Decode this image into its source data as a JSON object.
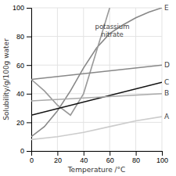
{
  "chart_data": {
    "type": "line",
    "xlabel": "Temperature /°C",
    "ylabel": "Solubility/g/100g water",
    "xlim": [
      0,
      100
    ],
    "ylim": [
      0,
      100
    ],
    "xticks": [
      0,
      20,
      40,
      60,
      80,
      100
    ],
    "yticks": [
      0,
      20,
      40,
      60,
      80,
      100
    ],
    "grid": true,
    "annotations": [
      {
        "text": "potassium\nnitrate",
        "x": 62,
        "y": 84
      }
    ],
    "series": [
      {
        "name": "E",
        "color": "#888888",
        "x": [
          0,
          10,
          20,
          30,
          40,
          50,
          60,
          70,
          80,
          90,
          100
        ],
        "values": [
          10,
          17,
          28,
          42,
          58,
          72,
          82,
          88,
          93,
          97,
          100
        ]
      },
      {
        "color": "#999999",
        "x": [
          0,
          10,
          20,
          30,
          40,
          50,
          60
        ],
        "values": [
          50,
          42,
          32,
          25,
          40,
          70,
          100
        ]
      },
      {
        "name": "D",
        "color": "#888888",
        "x": [
          0,
          100
        ],
        "values": [
          50,
          60
        ]
      },
      {
        "name": "C",
        "color": "#111111",
        "x": [
          0,
          100
        ],
        "values": [
          25,
          48
        ]
      },
      {
        "name": "B",
        "color": "#aaaaaa",
        "x": [
          0,
          100
        ],
        "values": [
          35,
          40
        ]
      },
      {
        "name": "A",
        "color": "#cccccc",
        "x": [
          0,
          20,
          40,
          60,
          80,
          100
        ],
        "values": [
          8,
          10,
          13,
          17,
          21,
          24
        ]
      }
    ]
  }
}
